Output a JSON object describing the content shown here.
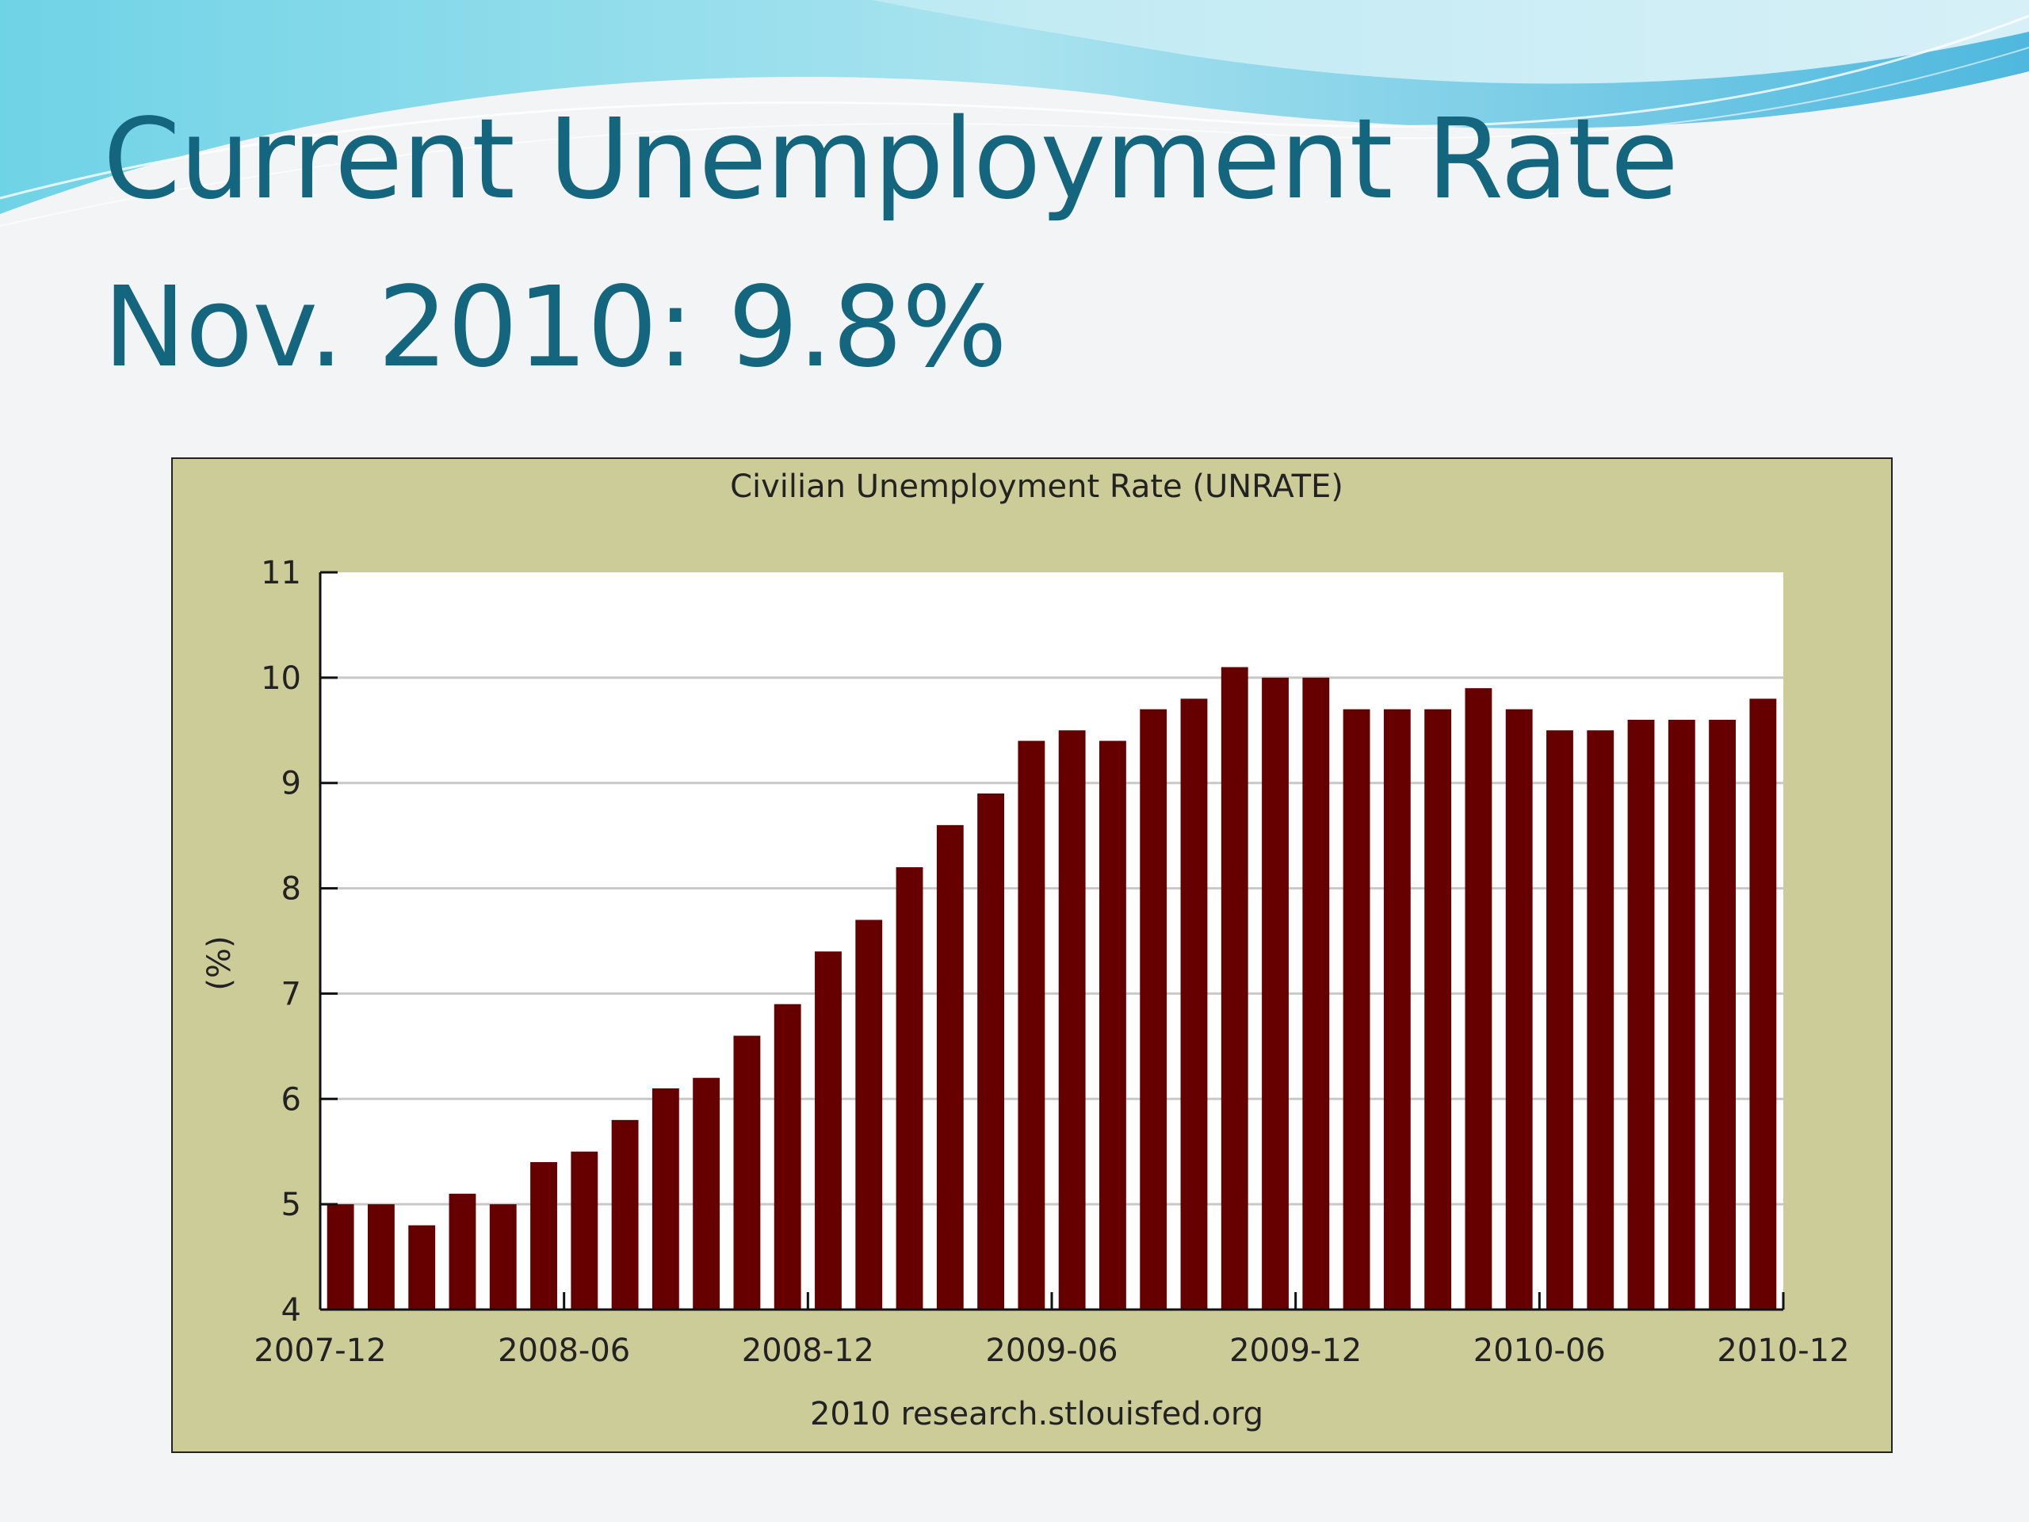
{
  "slide": {
    "title_line_1": "Current Unemployment Rate",
    "title_line_2": "Nov. 2010:  9.8%"
  },
  "colors": {
    "title": "#14667e",
    "chart_background": "#cccc99",
    "plot_background": "#ffffff",
    "bar": "#660000",
    "grid": "#c8c8c8"
  },
  "chart_data": {
    "type": "bar",
    "title": "Civilian Unemployment Rate (UNRATE)",
    "ylabel": "(%)",
    "footer": "2010 research.stlouisfed.org",
    "ylim": [
      4,
      11
    ],
    "yticks": [
      "4",
      "5",
      "6",
      "7",
      "8",
      "9",
      "10",
      "11"
    ],
    "grid": true,
    "xtick_labels": [
      "2007-12",
      "2008-06",
      "2008-12",
      "2009-06",
      "2009-12",
      "2010-06",
      "2010-12"
    ],
    "categories": [
      "2007-12",
      "2008-01",
      "2008-02",
      "2008-03",
      "2008-04",
      "2008-05",
      "2008-06",
      "2008-07",
      "2008-08",
      "2008-09",
      "2008-10",
      "2008-11",
      "2008-12",
      "2009-01",
      "2009-02",
      "2009-03",
      "2009-04",
      "2009-05",
      "2009-06",
      "2009-07",
      "2009-08",
      "2009-09",
      "2009-10",
      "2009-11",
      "2009-12",
      "2010-01",
      "2010-02",
      "2010-03",
      "2010-04",
      "2010-05",
      "2010-06",
      "2010-07",
      "2010-08",
      "2010-09",
      "2010-10",
      "2010-11"
    ],
    "values": [
      5.0,
      5.0,
      4.8,
      5.1,
      5.0,
      5.4,
      5.5,
      5.8,
      6.1,
      6.2,
      6.6,
      6.9,
      7.4,
      7.7,
      8.2,
      8.6,
      8.9,
      9.4,
      9.5,
      9.4,
      9.7,
      9.8,
      10.1,
      10.0,
      10.0,
      9.7,
      9.7,
      9.7,
      9.9,
      9.7,
      9.5,
      9.5,
      9.6,
      9.6,
      9.6,
      9.8
    ]
  }
}
